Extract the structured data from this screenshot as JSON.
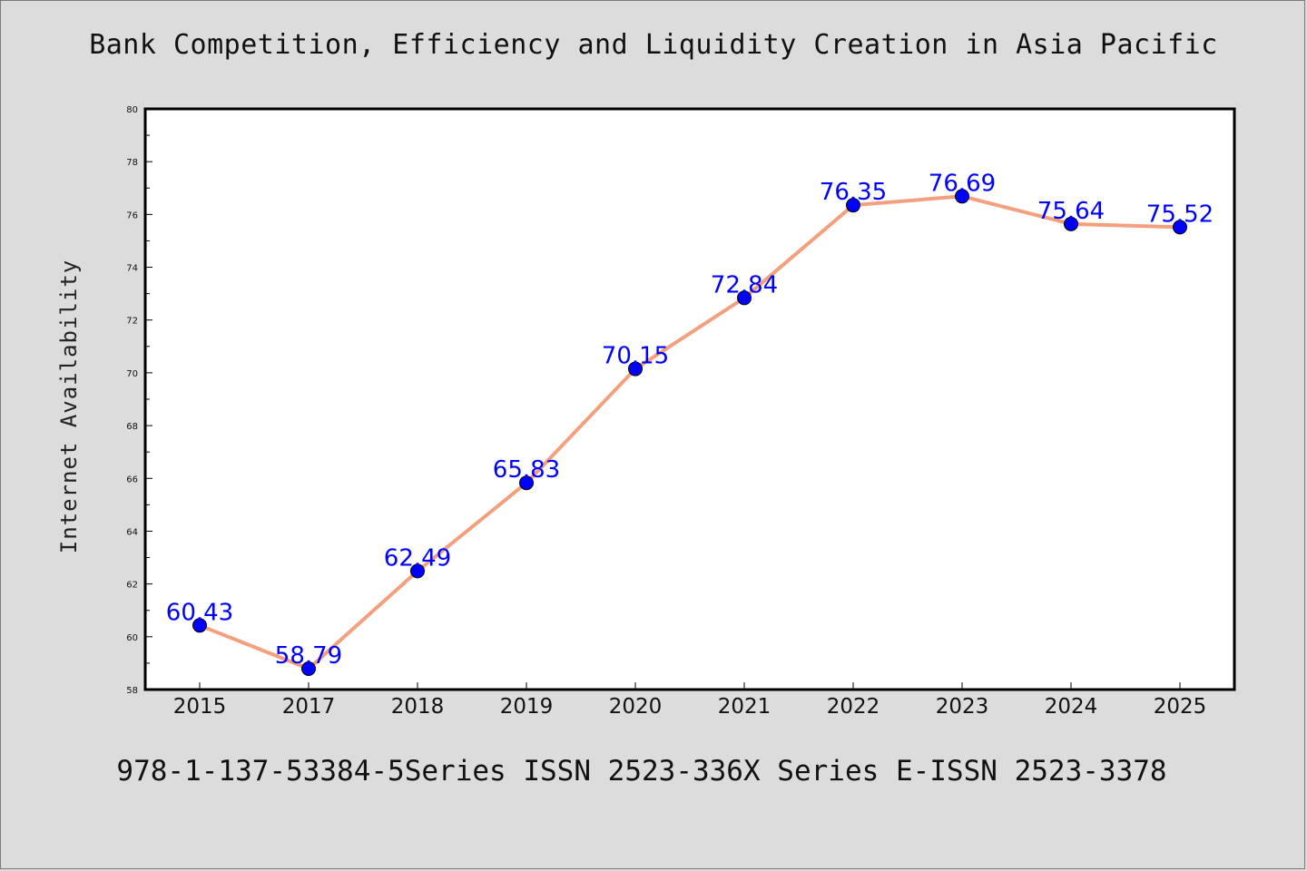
{
  "chart_data": {
    "type": "line",
    "title": "Bank Competition, Efficiency and Liquidity Creation in Asia Pacific",
    "xlabel": "",
    "ylabel": "Internet Availability",
    "categories": [
      "2015",
      "2017",
      "2018",
      "2019",
      "2020",
      "2021",
      "2022",
      "2023",
      "2024",
      "2025"
    ],
    "series": [
      {
        "values": [
          60.43,
          58.79,
          62.49,
          65.83,
          70.15,
          72.84,
          76.35,
          76.69,
          75.64,
          75.52
        ],
        "labels": [
          "60.43",
          "58.79",
          "62.49",
          "65.83",
          "70.15",
          "72.84",
          "76.35",
          "76.69",
          "75.64",
          "75.52"
        ]
      }
    ],
    "ylim": [
      58,
      80
    ],
    "yticks": [
      "58",
      "60",
      "62",
      "64",
      "66",
      "68",
      "70",
      "72",
      "74",
      "76",
      "78",
      "80"
    ],
    "grid": false,
    "legend": "none",
    "colors": {
      "line": "#f4a07e",
      "marker": "#0000ff",
      "marker_edge": "#000000",
      "data_label": "#0000ff",
      "background": "#dcdcdc",
      "plot_background": "#ffffff"
    }
  },
  "footer": {
    "text": "978-1-137-53384-5Series ISSN 2523-336X Series E-ISSN 2523-3378"
  }
}
